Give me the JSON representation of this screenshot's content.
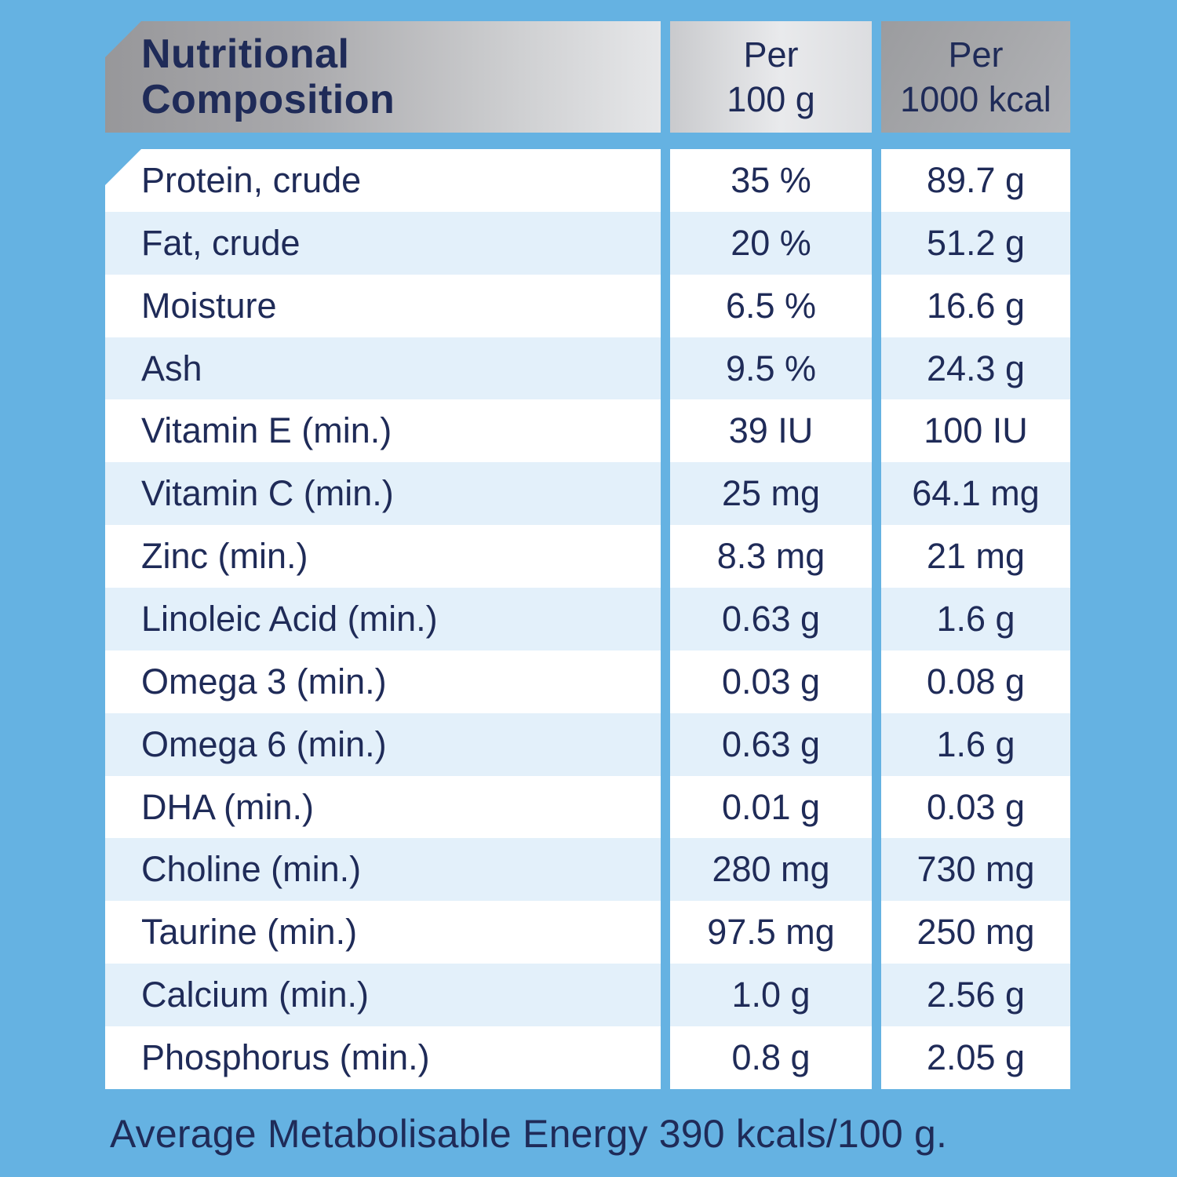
{
  "panel": {
    "title": "Nutritional\nComposition",
    "columns": {
      "per_100g": "Per\n100 g",
      "per_1000kcal": "Per\n1000 kcal"
    },
    "rows": [
      {
        "label": "Protein, crude",
        "per_100g": "35 %",
        "per_1000kcal": "89.7 g"
      },
      {
        "label": "Fat, crude",
        "per_100g": "20 %",
        "per_1000kcal": "51.2 g"
      },
      {
        "label": "Moisture",
        "per_100g": "6.5 %",
        "per_1000kcal": "16.6 g"
      },
      {
        "label": "Ash",
        "per_100g": "9.5 %",
        "per_1000kcal": "24.3 g"
      },
      {
        "label": "Vitamin E (min.)",
        "per_100g": "39 IU",
        "per_1000kcal": "100 IU"
      },
      {
        "label": "Vitamin C (min.)",
        "per_100g": "25 mg",
        "per_1000kcal": "64.1 mg"
      },
      {
        "label": "Zinc (min.)",
        "per_100g": "8.3 mg",
        "per_1000kcal": "21 mg"
      },
      {
        "label": "Linoleic Acid (min.)",
        "per_100g": "0.63 g",
        "per_1000kcal": "1.6 g"
      },
      {
        "label": "Omega 3 (min.)",
        "per_100g": "0.03 g",
        "per_1000kcal": "0.08 g"
      },
      {
        "label": "Omega 6 (min.)",
        "per_100g": "0.63 g",
        "per_1000kcal": "1.6 g"
      },
      {
        "label": "DHA (min.)",
        "per_100g": "0.01 g",
        "per_1000kcal": "0.03 g"
      },
      {
        "label": "Choline (min.)",
        "per_100g": "280 mg",
        "per_1000kcal": "730 mg"
      },
      {
        "label": "Taurine (min.)",
        "per_100g": "97.5 mg",
        "per_1000kcal": "250 mg"
      },
      {
        "label": "Calcium (min.)",
        "per_100g": "1.0 g",
        "per_1000kcal": "2.56 g"
      },
      {
        "label": "Phosphorus (min.)",
        "per_100g": "0.8 g",
        "per_1000kcal": "2.05 g"
      }
    ],
    "footer": "Average Metabolisable Energy 390 kcals/100 g."
  },
  "colors": {
    "background_blue": "#65b2e2",
    "stripe_blue": "#e3f0fa",
    "row_white": "#ffffff",
    "text_navy": "#1f2b58",
    "header_silver_dark": "#97979a",
    "header_silver_light": "#e9eaec"
  }
}
